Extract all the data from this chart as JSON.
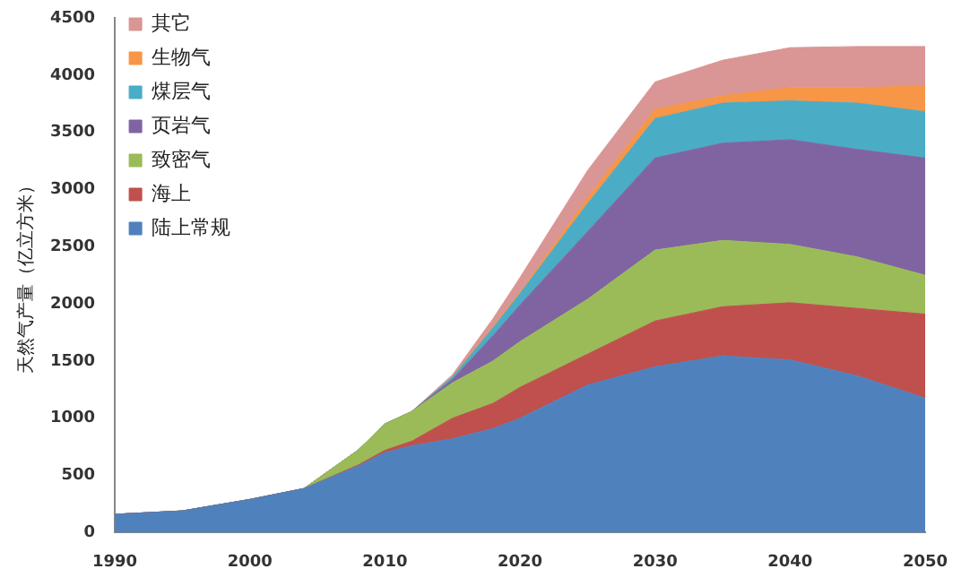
{
  "chart_data": {
    "type": "area",
    "stacked": true,
    "ylabel": "天然气产量（亿立方米）",
    "x": [
      1990,
      1995,
      2000,
      2004,
      2008,
      2010,
      2012,
      2015,
      2018,
      2020,
      2025,
      2030,
      2035,
      2040,
      2045,
      2050
    ],
    "xlim": [
      1990,
      2050
    ],
    "xticks": [
      1990,
      2000,
      2010,
      2020,
      2030,
      2040,
      2050
    ],
    "ylim": [
      0,
      4500
    ],
    "yticks": [
      0,
      500,
      1000,
      1500,
      2000,
      2500,
      3000,
      3500,
      4000,
      4500
    ],
    "grid": false,
    "legend": "top left",
    "marker": "none",
    "series": [
      {
        "name": "陆上常规",
        "color": "#4f81bd",
        "values": [
          160,
          190,
          290,
          385,
          580,
          700,
          760,
          820,
          910,
          1000,
          1290,
          1450,
          1545,
          1510,
          1370,
          1175
        ]
      },
      {
        "name": "海上",
        "color": "#c0504d",
        "values": [
          0,
          0,
          0,
          0,
          10,
          20,
          40,
          180,
          220,
          270,
          270,
          400,
          430,
          500,
          590,
          735
        ]
      },
      {
        "name": "致密气",
        "color": "#9bbb59",
        "values": [
          0,
          0,
          0,
          0,
          130,
          230,
          260,
          310,
          370,
          400,
          480,
          620,
          580,
          510,
          450,
          340
        ]
      },
      {
        "name": "页岩气",
        "color": "#8064a2",
        "values": [
          0,
          0,
          0,
          0,
          0,
          0,
          0,
          30,
          220,
          320,
          590,
          805,
          850,
          915,
          940,
          1025
        ]
      },
      {
        "name": "煤层气",
        "color": "#4bacc6",
        "values": [
          0,
          0,
          0,
          0,
          0,
          0,
          0,
          20,
          70,
          100,
          245,
          345,
          350,
          340,
          405,
          405
        ]
      },
      {
        "name": "生物气",
        "color": "#f79646",
        "values": [
          0,
          0,
          0,
          0,
          0,
          0,
          0,
          5,
          10,
          10,
          50,
          80,
          65,
          115,
          135,
          225
        ]
      },
      {
        "name": "其它",
        "color": "#d99694",
        "values": [
          0,
          0,
          0,
          0,
          0,
          0,
          0,
          15,
          70,
          130,
          240,
          240,
          310,
          350,
          360,
          345
        ]
      }
    ]
  }
}
